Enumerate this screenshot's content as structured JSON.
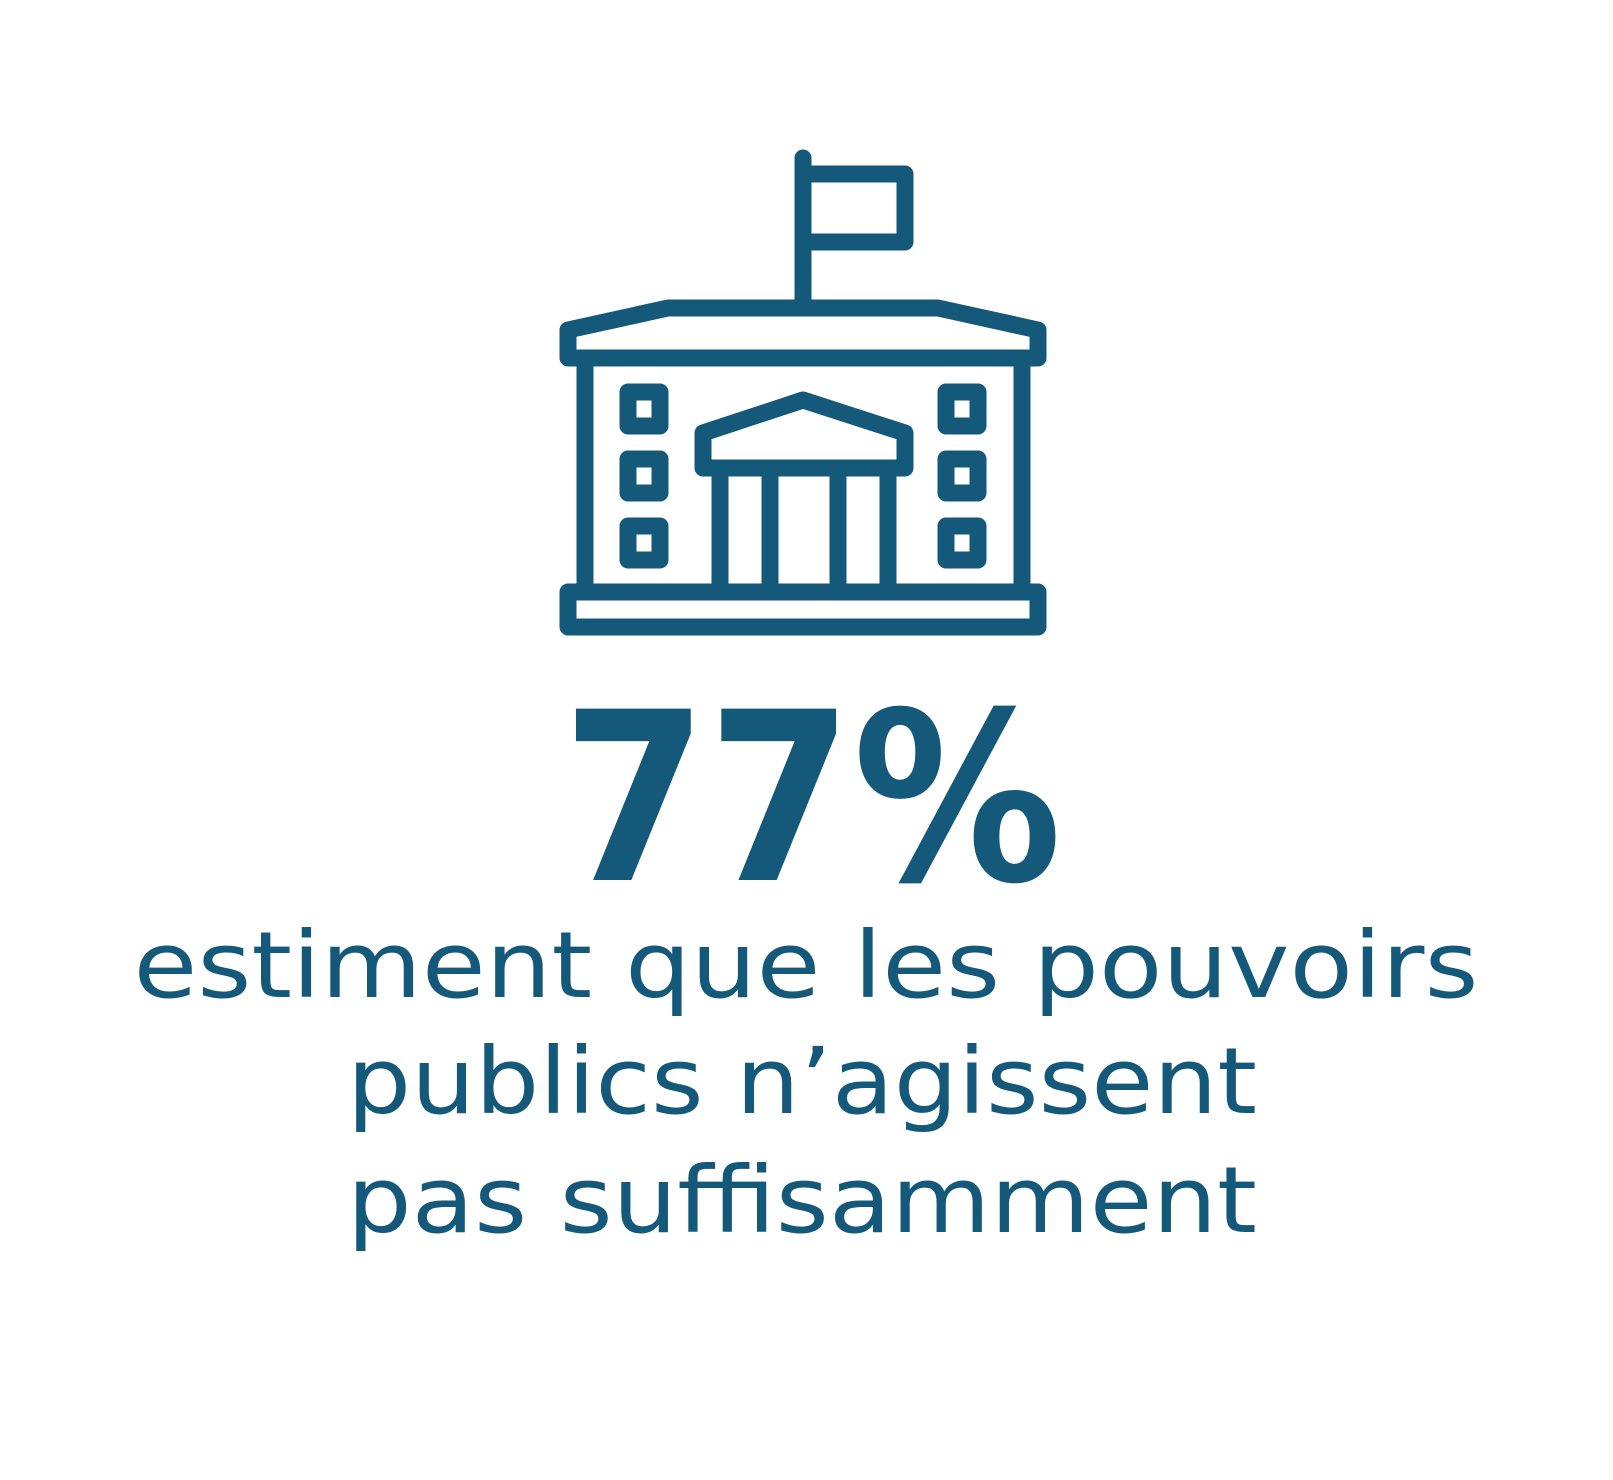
{
  "stat": "77%",
  "caption": [
    "estiment que les pouvoirs",
    "publics n’agissent",
    "pas suffisamment"
  ]
}
